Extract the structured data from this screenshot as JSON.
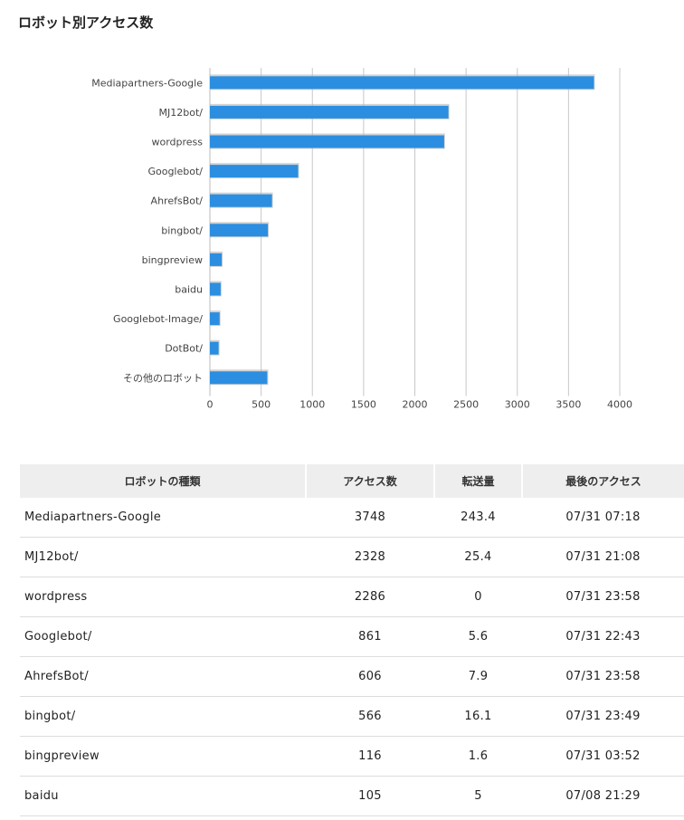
{
  "page": {
    "title": "ロボット別アクセス数"
  },
  "colors": {
    "bar": "#2b8ee0",
    "bar_shadow": "#b5b5b5",
    "grid": "#c8c8c8",
    "axis": "#bbbbbb"
  },
  "chart_data": {
    "type": "bar",
    "orientation": "horizontal",
    "title": "",
    "xlabel": "",
    "ylabel": "",
    "categories": [
      "Mediapartners-Google",
      "MJ12bot/",
      "wordpress",
      "Googlebot/",
      "AhrefsBot/",
      "bingbot/",
      "bingpreview",
      "baidu",
      "Googlebot-Image/",
      "DotBot/",
      "その他のロボット"
    ],
    "values": [
      3748,
      2328,
      2286,
      861,
      606,
      566,
      116,
      105,
      95,
      85,
      560
    ],
    "xlim": [
      0,
      4000
    ],
    "xticks": [
      "0",
      "500",
      "1000",
      "1500",
      "2000",
      "2500",
      "3000",
      "3500",
      "4000"
    ],
    "grid": true,
    "legend": "none"
  },
  "table": {
    "headers": [
      "ロボットの種類",
      "アクセス数",
      "転送量",
      "最後のアクセス"
    ],
    "rows": [
      [
        "Mediapartners-Google",
        "3748",
        "243.4",
        "07/31 07:18"
      ],
      [
        "MJ12bot/",
        "2328",
        "25.4",
        "07/31 21:08"
      ],
      [
        "wordpress",
        "2286",
        "0",
        "07/31 23:58"
      ],
      [
        "Googlebot/",
        "861",
        "5.6",
        "07/31 22:43"
      ],
      [
        "AhrefsBot/",
        "606",
        "7.9",
        "07/31 23:58"
      ],
      [
        "bingbot/",
        "566",
        "16.1",
        "07/31 23:49"
      ],
      [
        "bingpreview",
        "116",
        "1.6",
        "07/31 03:52"
      ],
      [
        "baidu",
        "105",
        "5",
        "07/08 21:29"
      ]
    ]
  }
}
